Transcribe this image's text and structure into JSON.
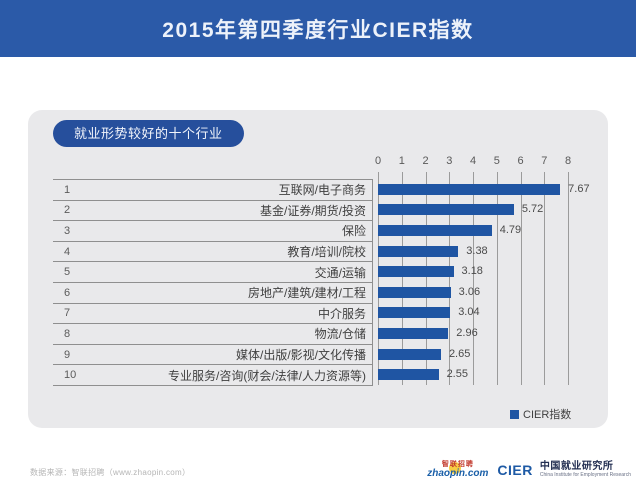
{
  "banner": {
    "title": "2015年第四季度行业CIER指数",
    "bg_color": "#2B5AA8"
  },
  "badge": {
    "label": "就业形势较好的十个行业",
    "bg_color": "#264F9C"
  },
  "chart_data": {
    "type": "bar",
    "orientation": "horizontal",
    "title": "2015年第四季度行业CIER指数",
    "subtitle": "就业形势较好的十个行业",
    "ranks": [
      "1",
      "2",
      "3",
      "4",
      "5",
      "6",
      "7",
      "8",
      "9",
      "10"
    ],
    "categories": [
      "互联网/电子商务",
      "基金/证券/期货/投资",
      "保险",
      "教育/培训/院校",
      "交通/运输",
      "房地产/建筑/建材/工程",
      "中介服务",
      "物流/仓储",
      "媒体/出版/影视/文化传播",
      "专业服务/咨询(财会/法律/人力资源等)"
    ],
    "values": [
      7.67,
      5.72,
      4.79,
      3.38,
      3.18,
      3.06,
      3.04,
      2.96,
      2.65,
      2.55
    ],
    "value_labels": [
      "7.67",
      "5.72",
      "4.79",
      "3.38",
      "3.18",
      "3.06",
      "3.04",
      "2.96",
      "2.65",
      "2.55"
    ],
    "xlim": [
      0,
      8
    ],
    "xticks": [
      0,
      1,
      2,
      3,
      4,
      5,
      6,
      7,
      8
    ],
    "grid": true,
    "legend": "CIER指数",
    "legend_position": "bottom-right",
    "bar_color": "#1F55A3"
  },
  "footer": {
    "source": "数据来源：智联招聘（www.zhaopin.com）",
    "logos": {
      "zhaopin_cn": "智联招聘",
      "zhaopin_en": "zhaopin.com",
      "cier": "CIER",
      "institute_cn": "中国就业研究所",
      "institute_en": "China Institute for Employment Research"
    }
  }
}
